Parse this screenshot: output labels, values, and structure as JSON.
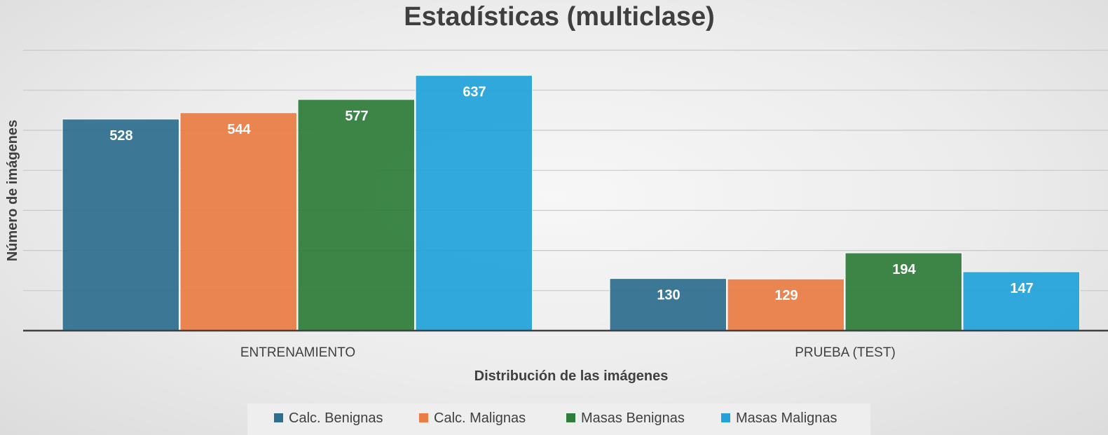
{
  "chart_data": {
    "type": "bar",
    "title": "Estadísticas (multiclase)",
    "xlabel": "Distribución de las imágenes",
    "ylabel": "Número de imágenes",
    "categories": [
      "ENTRENAMIENTO",
      "PRUEBA (TEST)"
    ],
    "series": [
      {
        "name": "Calc. Benignas",
        "color": "#2e6f8e",
        "values": [
          528,
          130
        ]
      },
      {
        "name": "Calc. Malignas",
        "color": "#ea7c45",
        "values": [
          544,
          129
        ]
      },
      {
        "name": "Masas Benignas",
        "color": "#2e7d3a",
        "values": [
          577,
          194
        ]
      },
      {
        "name": "Masas Malignas",
        "color": "#21a3d9",
        "values": [
          637,
          147
        ]
      }
    ],
    "ylim": [
      0,
      700
    ],
    "y_gridline_step": 100,
    "grid": true,
    "legend_position": "bottom"
  }
}
